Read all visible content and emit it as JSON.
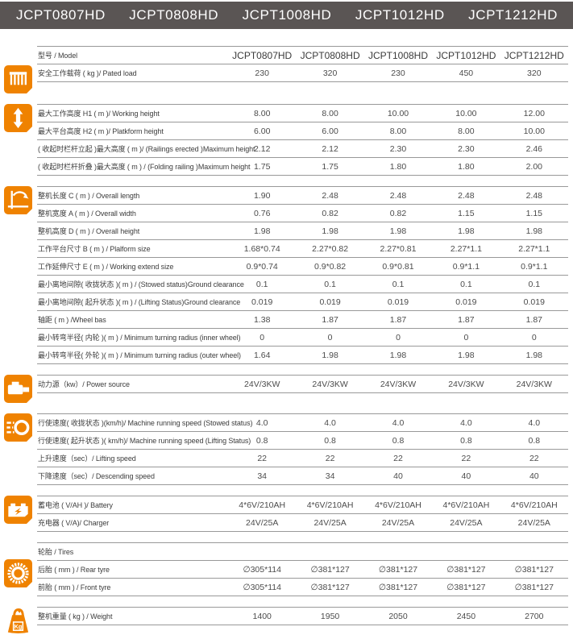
{
  "colors": {
    "accent_orange": "#ef8200",
    "topbar_gray": "#5a5554",
    "row_line_gray": "#999999"
  },
  "header": {
    "models": [
      "JCPT0807HD",
      "JCPT0808HD",
      "JCPT1008HD",
      "JCPT1012HD",
      "JCPT1212HD"
    ]
  },
  "table": {
    "sections": [
      {
        "icon": "platform-load-icon",
        "rows": [
          {
            "variant": "model",
            "label": "型号 / Model",
            "values": [
              "JCPT0807HD",
              "JCPT0808HD",
              "JCPT1008HD",
              "JCPT1012HD",
              "JCPT1212HD"
            ]
          },
          {
            "label": "安全工作载荷 ( kg )/ Pated load",
            "values": [
              "230",
              "320",
              "230",
              "450",
              "320"
            ]
          }
        ]
      },
      {
        "icon": "height-range-icon",
        "rows": [
          {
            "label": "最大工作高度 H1 ( m )/ Working height",
            "values": [
              "8.00",
              "8.00",
              "10.00",
              "10.00",
              "12.00"
            ]
          },
          {
            "label": "最大平台高度 H2 ( m )/ Platkform height",
            "values": [
              "6.00",
              "6.00",
              "8.00",
              "8.00",
              "10.00"
            ]
          },
          {
            "label": "( 收起时栏杆立起 )最大高度 ( m )/ (Railings erected )Maximum height",
            "values": [
              "2.12",
              "2.12",
              "2.30",
              "2.30",
              "2.46"
            ]
          },
          {
            "label": "( 收起时栏杆折叠 )最大高度 ( m ) / (Folding railing )Maximum height",
            "values": [
              "1.75",
              "1.75",
              "1.80",
              "1.80",
              "2.00"
            ]
          }
        ]
      },
      {
        "icon": "dimensions-icon",
        "rows": [
          {
            "label": "整机长度 C ( m ) / Overall length",
            "values": [
              "1.90",
              "2.48",
              "2.48",
              "2.48",
              "2.48"
            ]
          },
          {
            "label": "整机宽度 A ( m ) / Overall width",
            "values": [
              "0.76",
              "0.82",
              "0.82",
              "1.15",
              "1.15"
            ]
          },
          {
            "label": "整机高度 D ( m ) / Overall height",
            "values": [
              "1.98",
              "1.98",
              "1.98",
              "1.98",
              "1.98"
            ]
          },
          {
            "label": "工作平台尺寸 B ( m ) / Plalform size",
            "values": [
              "1.68*0.74",
              "2.27*0.82",
              "2.27*0.81",
              "2.27*1.1",
              "2.27*1.1"
            ]
          },
          {
            "label": "工作延伸尺寸 E ( m ) / Working extend size",
            "values": [
              "0.9*0.74",
              "0.9*0.82",
              "0.9*0.81",
              "0.9*1.1",
              "0.9*1.1"
            ]
          },
          {
            "label": "最小离地间隙( 收拢状态 )( m ) / (Stowed status)Ground clearance",
            "values": [
              "0.1",
              "0.1",
              "0.1",
              "0.1",
              "0.1"
            ]
          },
          {
            "label": "最小离地间隙( 起升状态 )( m ) / (Lifting Status)Ground clearance",
            "values": [
              "0.019",
              "0.019",
              "0.019",
              "0.019",
              "0.019"
            ]
          },
          {
            "label": "轴距 ( m ) /Wheel bas",
            "values": [
              "1.38",
              "1.87",
              "1.87",
              "1.87",
              "1.87"
            ]
          },
          {
            "label": "最小转弯半径( 内轮 )( m ) / Minimum turning radius (inner wheel)",
            "values": [
              "0",
              "0",
              "0",
              "0",
              "0"
            ]
          },
          {
            "label": "最小转弯半径( 外轮 )( m ) / Minimum turning radius (outer wheel)",
            "values": [
              "1.64",
              "1.98",
              "1.98",
              "1.98",
              "1.98"
            ]
          }
        ]
      },
      {
        "icon": "power-source-icon",
        "rows": [
          {
            "label": "动力源（kw）/ Power source",
            "values": [
              "24V/3KW",
              "24V/3KW",
              "24V/3KW",
              "24V/3KW",
              "24V/3KW"
            ]
          }
        ]
      },
      {
        "icon": "speed-icon",
        "rows": [
          {
            "label": "行使速度( 收拢状态 )(km/h)/ Machine running speed (Stowed status)",
            "values": [
              "4.0",
              "4.0",
              "4.0",
              "4.0",
              "4.0"
            ]
          },
          {
            "label": "行使速度( 起升状态 )( km/h)/ Machine running speed (Lifting Status)",
            "values": [
              "0.8",
              "0.8",
              "0.8",
              "0.8",
              "0.8"
            ]
          },
          {
            "label": "上升速度（sec）/ Lifting speed",
            "values": [
              "22",
              "22",
              "22",
              "22",
              "22"
            ]
          },
          {
            "label": "下降速度（sec）/ Descending speed",
            "values": [
              "34",
              "34",
              "40",
              "40",
              "40"
            ]
          }
        ]
      },
      {
        "icon": "battery-icon",
        "rows": [
          {
            "label": "蓄电池 ( V/AH )/ Battery",
            "values": [
              "4*6V/210AH",
              "4*6V/210AH",
              "4*6V/210AH",
              "4*6V/210AH",
              "4*6V/210AH"
            ]
          },
          {
            "label": "充电器 ( V/A)/ Charger",
            "values": [
              "24V/25A",
              "24V/25A",
              "24V/25A",
              "24V/25A",
              "24V/25A"
            ]
          }
        ]
      },
      {
        "icon": "tire-icon",
        "rows": [
          {
            "label": "轮胎 / Tires",
            "values": []
          },
          {
            "label": "后胎 ( mm ) / Rear tyre",
            "values": [
              "∅305*114",
              "∅381*127",
              "∅381*127",
              "∅381*127",
              "∅381*127"
            ]
          },
          {
            "label": "前胎 ( mm ) / Front tyre",
            "values": [
              "∅305*114",
              "∅381*127",
              "∅381*127",
              "∅381*127",
              "∅381*127"
            ]
          }
        ]
      },
      {
        "icon": "weight-icon",
        "rows": [
          {
            "label": "整机重量 ( kg ) / Weight",
            "values": [
              "1400",
              "1950",
              "2050",
              "2450",
              "2700"
            ]
          }
        ]
      }
    ]
  }
}
